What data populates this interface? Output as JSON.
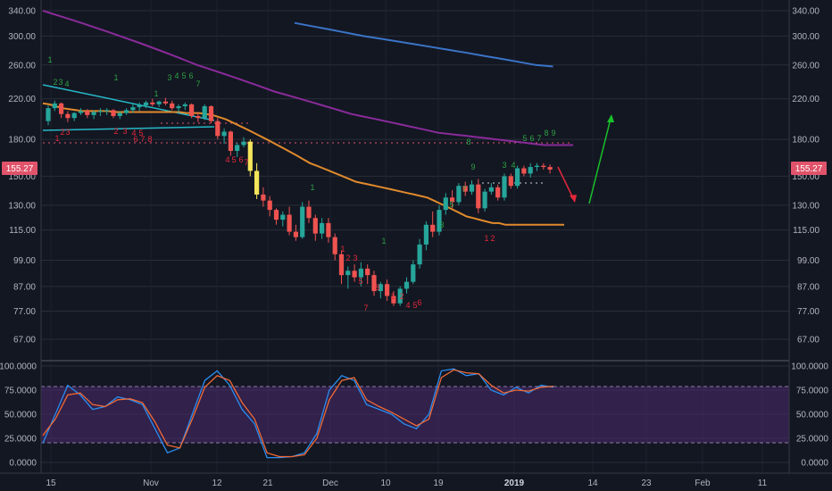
{
  "chart_data": [
    {
      "type": "candlestick",
      "y_ticks": [
        "340.00",
        "300.00",
        "260.00",
        "220.00",
        "180.00",
        "150.00",
        "130.00",
        "115.00",
        "99.00",
        "87.00",
        "77.00",
        "67.00"
      ],
      "y_axis_scale": "log",
      "last_price_label": "155.27",
      "x_ticks": [
        "15",
        "Nov",
        "12",
        "21",
        "Dec",
        "10",
        "19",
        "2019",
        "14",
        "23",
        "Feb",
        "11"
      ],
      "x_tick_bold": "2019",
      "candles": [
        [
          197,
          213,
          193,
          210
        ],
        [
          210,
          218,
          207,
          215
        ],
        [
          215,
          216,
          200,
          204
        ],
        [
          204,
          207,
          196,
          200
        ],
        [
          200,
          206,
          197,
          205
        ],
        [
          205,
          210,
          203,
          207
        ],
        [
          207,
          209,
          200,
          203
        ],
        [
          203,
          208,
          199,
          206
        ],
        [
          206,
          210,
          202,
          207
        ],
        [
          207,
          210,
          203,
          208
        ],
        [
          208,
          209,
          200,
          202
        ],
        [
          202,
          207,
          199,
          205
        ],
        [
          205,
          210,
          203,
          208
        ],
        [
          208,
          214,
          205,
          211
        ],
        [
          211,
          216,
          207,
          213
        ],
        [
          213,
          218,
          210,
          216
        ],
        [
          216,
          220,
          212,
          214
        ],
        [
          214,
          218,
          211,
          217
        ],
        [
          217,
          221,
          213,
          215
        ],
        [
          215,
          218,
          208,
          210
        ],
        [
          210,
          214,
          205,
          212
        ],
        [
          212,
          216,
          208,
          214
        ],
        [
          214,
          215,
          200,
          202
        ],
        [
          202,
          206,
          196,
          200
        ],
        [
          200,
          214,
          198,
          212
        ],
        [
          212,
          213,
          195,
          197
        ],
        [
          197,
          200,
          180,
          183
        ],
        [
          183,
          190,
          176,
          187
        ],
        [
          187,
          188,
          166,
          170
        ],
        [
          170,
          177,
          165,
          175
        ],
        [
          175,
          182,
          173,
          178
        ],
        [
          178,
          180,
          150,
          154
        ],
        [
          154,
          160,
          134,
          137
        ],
        [
          137,
          142,
          129,
          133
        ],
        [
          133,
          136,
          123,
          127
        ],
        [
          127,
          128,
          118,
          121
        ],
        [
          121,
          126,
          117,
          124
        ],
        [
          124,
          129,
          112,
          114
        ],
        [
          114,
          118,
          109,
          111
        ],
        [
          111,
          132,
          110,
          129
        ],
        [
          129,
          133,
          119,
          122
        ],
        [
          122,
          124,
          109,
          113
        ],
        [
          113,
          122,
          110,
          119
        ],
        [
          119,
          122,
          108,
          111
        ],
        [
          111,
          113,
          99,
          102
        ],
        [
          102,
          104,
          88,
          92
        ],
        [
          92,
          96,
          86,
          94
        ],
        [
          94,
          97,
          89,
          91
        ],
        [
          91,
          98,
          87,
          95
        ],
        [
          95,
          97,
          88,
          92
        ],
        [
          92,
          94,
          83,
          85
        ],
        [
          85,
          89,
          82,
          88
        ],
        [
          88,
          90,
          81,
          83
        ],
        [
          83,
          85,
          79,
          80
        ],
        [
          80,
          87,
          79,
          86
        ],
        [
          86,
          91,
          84,
          89
        ],
        [
          89,
          99,
          88,
          97
        ],
        [
          97,
          110,
          95,
          107
        ],
        [
          107,
          120,
          104,
          118
        ],
        [
          118,
          126,
          111,
          114
        ],
        [
          114,
          130,
          112,
          127
        ],
        [
          127,
          138,
          124,
          135
        ],
        [
          135,
          140,
          128,
          132
        ],
        [
          132,
          145,
          130,
          143
        ],
        [
          143,
          146,
          136,
          139
        ],
        [
          139,
          147,
          137,
          144
        ],
        [
          144,
          148,
          125,
          128
        ],
        [
          128,
          141,
          126,
          139
        ],
        [
          139,
          145,
          137,
          142
        ],
        [
          142,
          144,
          133,
          135
        ],
        [
          135,
          152,
          133,
          150
        ],
        [
          150,
          152,
          141,
          143
        ],
        [
          143,
          158,
          141,
          156
        ],
        [
          156,
          158,
          150,
          152
        ],
        [
          152,
          160,
          149,
          157
        ],
        [
          157,
          160,
          154,
          158
        ],
        [
          158,
          160,
          155,
          157
        ],
        [
          157,
          159,
          152,
          155
        ]
      ],
      "sma_orange": [
        215,
        214,
        212,
        210,
        209,
        208,
        207,
        207,
        207,
        207,
        207,
        206,
        206,
        206,
        206,
        206,
        206,
        206,
        206,
        206,
        206,
        206,
        205,
        205,
        205,
        204,
        203,
        201,
        199,
        196,
        193,
        190,
        187,
        184,
        181,
        178,
        175,
        172,
        169,
        166,
        163,
        160,
        158,
        156,
        154,
        152,
        150,
        148,
        146,
        145,
        144,
        143,
        142,
        141,
        140,
        139,
        138,
        137,
        136,
        135,
        133,
        131,
        129,
        127,
        125,
        123,
        122,
        121,
        120,
        119,
        119,
        118,
        118,
        118,
        118,
        118,
        118,
        118,
        118,
        118,
        118
      ],
      "sma_purple": [
        340,
        335,
        330,
        325,
        320,
        315,
        310,
        305,
        300,
        295,
        290,
        285,
        280,
        275,
        270,
        265,
        260,
        256,
        252,
        248,
        244,
        240,
        236,
        232,
        228,
        225,
        222,
        219,
        216,
        213,
        210,
        207,
        204,
        202,
        200,
        198,
        196,
        194,
        192,
        190,
        188,
        186,
        185,
        184,
        183,
        182,
        181,
        180,
        179,
        178,
        177,
        176,
        175,
        175,
        175,
        175
      ],
      "sma_blue": [
        320,
        315,
        310,
        305,
        300,
        296,
        292,
        288,
        284,
        280,
        276,
        272,
        268,
        264,
        260,
        258
      ],
      "stoch_k": [
        20,
        50,
        80,
        70,
        55,
        58,
        68,
        65,
        60,
        35,
        10,
        15,
        50,
        85,
        95,
        80,
        55,
        40,
        5,
        5,
        6,
        10,
        30,
        75,
        90,
        85,
        60,
        55,
        50,
        40,
        35,
        50,
        95,
        97,
        90,
        92,
        75,
        70,
        78,
        72,
        80,
        78
      ],
      "stoch_d": [
        28,
        45,
        70,
        72,
        60,
        58,
        65,
        66,
        62,
        42,
        18,
        15,
        45,
        78,
        90,
        85,
        62,
        45,
        10,
        6,
        6,
        8,
        25,
        65,
        85,
        88,
        65,
        58,
        52,
        45,
        38,
        45,
        88,
        96,
        93,
        92,
        80,
        72,
        75,
        74,
        78,
        79
      ],
      "stoch_ticks": [
        "100.0000",
        "75.0000",
        "50.0000",
        "25.0000",
        "0.0000"
      ]
    }
  ]
}
